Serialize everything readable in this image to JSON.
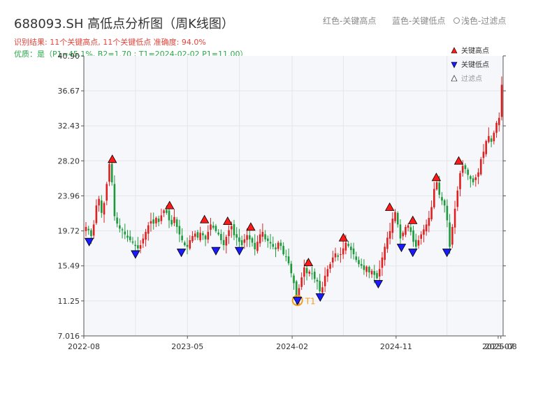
{
  "header": {
    "title": "688093.SH 高低点分析图（周K线图）",
    "legend_high": "红色-关键高点",
    "legend_low": "蓝色-关键低点",
    "legend_filtered": "浅色-过滤点",
    "info_line1": "识别结果: 11个关键高点, 11个关键低点   准确度: 94.0%",
    "info_line2": "优质：是（P1=45.1%, B2=1.70 ; T1=2024-02-02 P1=11.00）"
  },
  "colors": {
    "up": "#e02020",
    "down": "#1a9a3a",
    "high_marker": "#ff1a1a",
    "low_marker": "#1a1aff",
    "t1_ring": "#f0a020",
    "plot_bg": "#f6f7fa",
    "grid": "#e3e5ea"
  },
  "chart_data": {
    "type": "candlestick",
    "xlabel": "",
    "ylabel": "",
    "ylim": [
      7.016,
      40.9
    ],
    "y_ticks": [
      "7.016",
      "11.25",
      "15.49",
      "19.72",
      "23.96",
      "28.20",
      "32.43",
      "36.67",
      "40.90"
    ],
    "x_ticks": [
      "2022-08",
      "2023-05",
      "2024-02",
      "2024-11",
      "2025-07",
      "2025-08"
    ],
    "legend": [
      {
        "label": "关键高点",
        "marker": "triangle-up",
        "color": "#ff1a1a"
      },
      {
        "label": "关键低点",
        "marker": "triangle-down",
        "color": "#1a1aff"
      },
      {
        "label": "过滤点",
        "marker": "triangle-up-hollow",
        "color": "#cccccc"
      }
    ],
    "weekly_close": [
      20.2,
      19.8,
      19.1,
      20.5,
      22.8,
      23.6,
      21.9,
      23.1,
      25.4,
      27.8,
      25.6,
      21.5,
      20.6,
      20.0,
      19.8,
      19.3,
      18.9,
      18.6,
      18.3,
      17.9,
      17.6,
      18.0,
      18.8,
      19.6,
      20.4,
      20.9,
      20.6,
      21.3,
      20.8,
      21.6,
      22.2,
      21.9,
      21.0,
      20.5,
      21.4,
      20.2,
      19.3,
      18.6,
      18.0,
      17.8,
      18.6,
      19.1,
      19.4,
      18.9,
      19.5,
      19.2,
      18.7,
      19.6,
      20.5,
      20.1,
      19.7,
      19.3,
      18.6,
      18.0,
      19.0,
      19.8,
      20.3,
      19.2,
      18.9,
      18.4,
      18.0,
      18.7,
      19.2,
      18.7,
      18.3,
      17.5,
      18.4,
      19.3,
      19.6,
      18.7,
      18.5,
      18.2,
      17.8,
      17.5,
      18.3,
      17.9,
      16.9,
      16.6,
      15.8,
      14.6,
      13.4,
      11.3,
      12.8,
      14.1,
      15.3,
      14.6,
      14.8,
      14.5,
      13.9,
      13.6,
      12.4,
      12.9,
      14.3,
      15.1,
      15.7,
      16.5,
      17.0,
      16.6,
      16.9,
      17.6,
      18.3,
      17.9,
      17.4,
      16.9,
      16.2,
      15.7,
      15.5,
      15.0,
      15.4,
      14.7,
      14.9,
      14.4,
      14.0,
      15.1,
      16.5,
      17.8,
      18.9,
      19.7,
      21.2,
      22.0,
      20.5,
      18.8,
      19.5,
      20.2,
      20.4,
      19.6,
      18.4,
      17.8,
      18.6,
      19.3,
      19.9,
      20.5,
      21.3,
      22.6,
      24.8,
      25.6,
      24.1,
      23.4,
      22.8,
      21.0,
      17.8,
      20.2,
      22.4,
      24.6,
      26.7,
      27.6,
      27.2,
      26.5,
      26.0,
      25.6,
      26.2,
      26.8,
      28.4,
      29.3,
      30.6,
      31.2,
      30.5,
      31.6,
      32.8,
      33.4,
      37.4
    ],
    "key_highs": [
      {
        "date": "2022-10",
        "price": 27.8
      },
      {
        "date": "2023-03",
        "price": 22.2
      },
      {
        "date": "2023-06",
        "price": 20.5
      },
      {
        "date": "2023-08",
        "price": 20.3
      },
      {
        "date": "2023-10",
        "price": 19.6
      },
      {
        "date": "2024-03",
        "price": 15.3
      },
      {
        "date": "2024-06",
        "price": 18.3
      },
      {
        "date": "2024-10",
        "price": 22.0
      },
      {
        "date": "2024-12",
        "price": 20.4
      },
      {
        "date": "2025-02",
        "price": 25.6
      },
      {
        "date": "2025-04",
        "price": 27.6
      }
    ],
    "key_lows": [
      {
        "date": "2022-08",
        "price": 19.1
      },
      {
        "date": "2022-12",
        "price": 17.6
      },
      {
        "date": "2023-04",
        "price": 17.8
      },
      {
        "date": "2023-07",
        "price": 18.0
      },
      {
        "date": "2023-09",
        "price": 18.0
      },
      {
        "date": "2024-02",
        "price": 11.3,
        "label": "T1"
      },
      {
        "date": "2024-04",
        "price": 12.4
      },
      {
        "date": "2024-09",
        "price": 14.0
      },
      {
        "date": "2024-11",
        "price": 18.4
      },
      {
        "date": "2024-12",
        "price": 17.8
      },
      {
        "date": "2025-03",
        "price": 17.8
      }
    ]
  }
}
